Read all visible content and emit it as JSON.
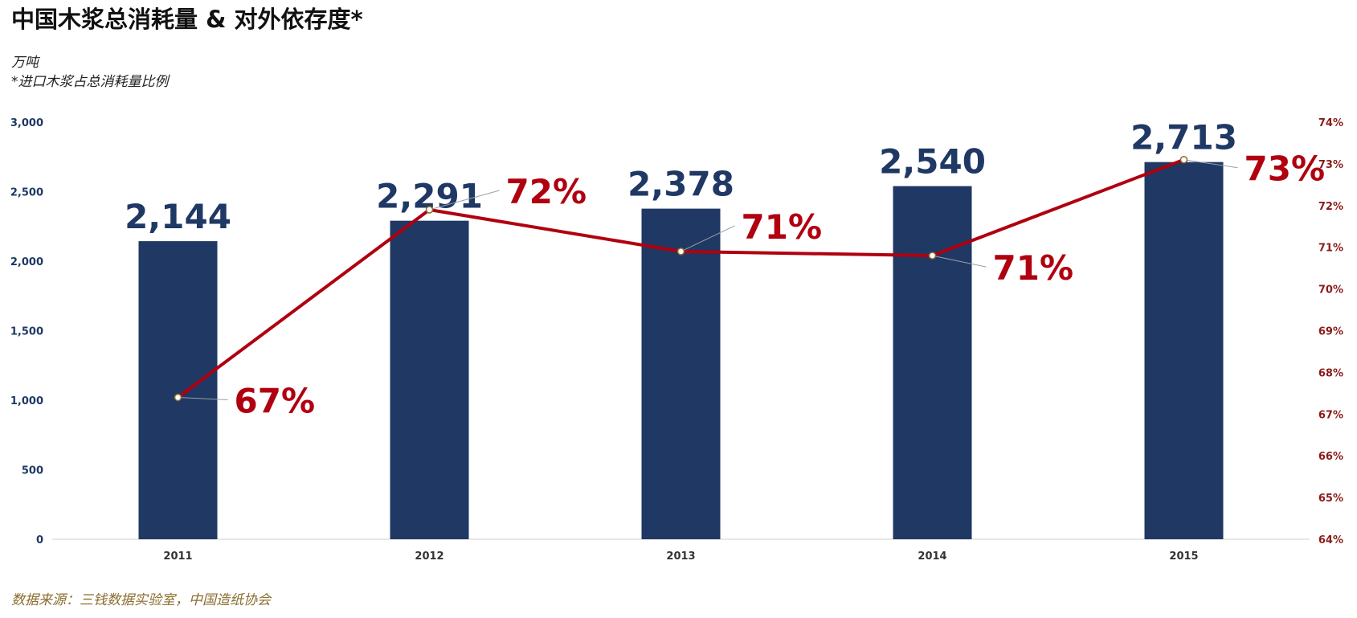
{
  "chart_data": {
    "type": "bar",
    "title": "中国木浆总消耗量 & 对外依存度*",
    "unit_note": "万吨",
    "footnote": "*进口木浆占总消耗量比例",
    "source": "数据来源：三钱数据实验室，中国造纸协会",
    "categories": [
      "2011",
      "2012",
      "2013",
      "2014",
      "2015"
    ],
    "series": [
      {
        "axis": "left",
        "kind": "bar",
        "values": [
          2144,
          2291,
          2378,
          2540,
          2713
        ],
        "labels": [
          "2,144",
          "2,291",
          "2,378",
          "2,540",
          "2,713"
        ],
        "color": "#1f3864"
      },
      {
        "axis": "right",
        "kind": "line",
        "values": [
          67.4,
          71.9,
          70.9,
          70.8,
          73.1
        ],
        "labels": [
          "67%",
          "72%",
          "71%",
          "71%",
          "73%"
        ],
        "color": "#b00010"
      }
    ],
    "ylim_left": [
      0,
      3000
    ],
    "yticks_left": [
      "0",
      "500",
      "1,000",
      "1,500",
      "2,000",
      "2,500",
      "3,000"
    ],
    "ylim_right": [
      64,
      74
    ],
    "yticks_right": [
      "64%",
      "65%",
      "66%",
      "67%",
      "68%",
      "69%",
      "70%",
      "71%",
      "72%",
      "73%",
      "74%"
    ],
    "grid": false,
    "legend": "none"
  }
}
